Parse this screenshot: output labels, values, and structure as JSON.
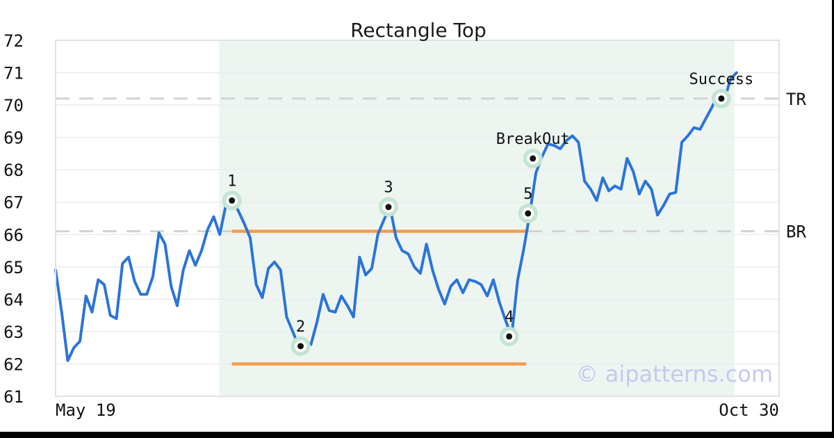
{
  "watermark": "© aipatterns.com",
  "colors": {
    "price_line": "#2b74d9",
    "pattern_line": "#f89b4c",
    "zone_fill": "#edf5f1",
    "grid": "#ececec",
    "plot_border": "#e2e2e2",
    "level_dash": "#d3d3d3",
    "marker_halo": "#c3e5d1",
    "marker_ring": "#ffffff",
    "marker_dot": "#111111",
    "watermark": "#c6c9f0",
    "frame_bar": "#000000"
  },
  "chart_data": {
    "type": "line",
    "title": "Rectangle Top",
    "xlabel": "",
    "ylabel": "",
    "grid": true,
    "legend": false,
    "axes": {
      "x_ticks": [
        "May 19",
        "Oct 30"
      ],
      "y_ticks": [
        61,
        62,
        63,
        64,
        65,
        66,
        67,
        68,
        69,
        70,
        71,
        72
      ],
      "y_min": 61,
      "y_max": 72,
      "x_min": 0,
      "x_max": 119
    },
    "levels": [
      {
        "name": "TR",
        "value": 70.2
      },
      {
        "name": "BR",
        "value": 66.1
      }
    ],
    "pattern": {
      "name": "rectangle",
      "top": 66.1,
      "bottom": 62.0,
      "x_start": 29,
      "x_end": 77.4
    },
    "zone": {
      "x_start": 26.9,
      "x_end": 111.7
    },
    "markers": [
      {
        "label": "1",
        "x": 29,
        "value": 67.05
      },
      {
        "label": "2",
        "x": 40.3,
        "value": 62.55
      },
      {
        "label": "3",
        "x": 54.75,
        "value": 66.85
      },
      {
        "label": "4",
        "x": 74.6,
        "value": 62.85
      },
      {
        "label": "5",
        "x": 77.7,
        "value": 66.65
      },
      {
        "label": "BreakOut",
        "x": 78.5,
        "value": 68.35
      },
      {
        "label": "Success",
        "x": 109.5,
        "value": 70.2
      }
    ],
    "series": [
      {
        "name": "price",
        "x_start_index": 0,
        "x_step": 1,
        "values": [
          64.9,
          63.6,
          62.1,
          62.5,
          62.7,
          64.1,
          63.6,
          64.6,
          64.45,
          63.5,
          63.4,
          65.1,
          65.3,
          64.55,
          64.15,
          64.15,
          64.7,
          66.05,
          65.7,
          64.4,
          63.8,
          64.9,
          65.5,
          65.05,
          65.5,
          66.15,
          66.55,
          66.0,
          66.9,
          67.05,
          66.75,
          66.35,
          65.9,
          64.45,
          64.05,
          64.95,
          65.15,
          64.9,
          63.45,
          63.0,
          62.55,
          62.7,
          62.6,
          63.3,
          64.15,
          63.65,
          63.6,
          64.1,
          63.8,
          63.45,
          65.3,
          64.75,
          64.95,
          66.0,
          66.45,
          66.85,
          65.9,
          65.5,
          65.4,
          65.0,
          64.8,
          65.7,
          64.9,
          64.3,
          63.85,
          64.4,
          64.6,
          64.2,
          64.6,
          64.55,
          64.45,
          64.1,
          64.6,
          63.9,
          63.35,
          62.85,
          64.6,
          65.55,
          66.65,
          67.9,
          68.4,
          68.8,
          68.75,
          68.65,
          68.9,
          69.05,
          68.85,
          67.65,
          67.4,
          67.05,
          67.75,
          67.35,
          67.5,
          67.4,
          68.35,
          67.95,
          67.25,
          67.65,
          67.4,
          66.6,
          66.9,
          67.25,
          67.3,
          68.85,
          69.05,
          69.3,
          69.25,
          69.6,
          69.95,
          70.35,
          70.15,
          70.8,
          71.0
        ]
      }
    ]
  }
}
